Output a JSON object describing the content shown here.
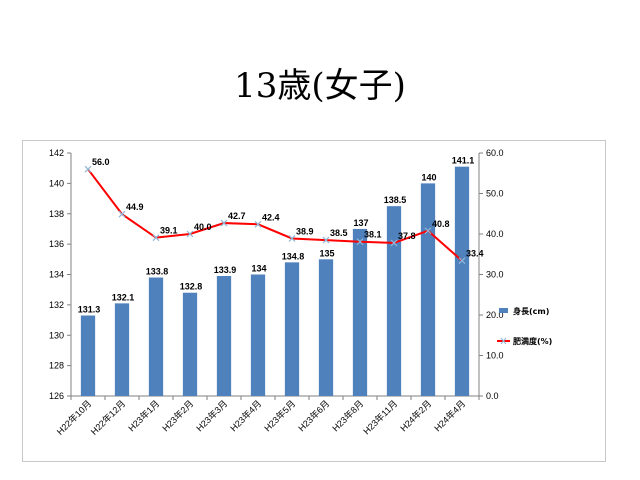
{
  "slide": {
    "title": "13歳(女子)"
  },
  "chart_data": {
    "type": "bar",
    "categories": [
      "H22年10月",
      "H22年12月",
      "H23年1月",
      "H23年2月",
      "H23年3月",
      "H23年4月",
      "H23年5月",
      "H23年6月",
      "H23年8月",
      "H23年11月",
      "H24年2月",
      "H24年4月"
    ],
    "series": [
      {
        "name": "身長(cm)",
        "type": "bar",
        "axis": "left",
        "color": "#4f81bd",
        "values": [
          131.3,
          132.1,
          133.8,
          132.8,
          133.9,
          134,
          134.8,
          135,
          137,
          138.5,
          140,
          141.1
        ],
        "labels": [
          "131.3",
          "132.1",
          "133.8",
          "132.8",
          "133.9",
          "134",
          "134.8",
          "135",
          "137",
          "138.5",
          "140",
          "141.1"
        ]
      },
      {
        "name": "肥満度(%)",
        "type": "line",
        "axis": "right",
        "color": "#ff0000",
        "marker_color": "#8fb8d8",
        "values": [
          56.0,
          44.9,
          39.1,
          40.0,
          42.7,
          42.4,
          38.9,
          38.5,
          38.1,
          37.8,
          40.8,
          33.4
        ],
        "labels": [
          "56.0",
          "44.9",
          "39.1",
          "40.0",
          "42.7",
          "42.4",
          "38.9",
          "38.5",
          "38.1",
          "37.8",
          "40.8",
          "33.4"
        ]
      }
    ],
    "y_left": {
      "min": 126,
      "max": 142,
      "ticks": [
        "126",
        "128",
        "130",
        "132",
        "134",
        "136",
        "138",
        "140",
        "142"
      ]
    },
    "y_right": {
      "min": 0,
      "max": 60,
      "ticks": [
        "0.0",
        "10.0",
        "20.0",
        "30.0",
        "40.0",
        "50.0",
        "60.0"
      ]
    },
    "grid": false,
    "legend_position": "right"
  }
}
